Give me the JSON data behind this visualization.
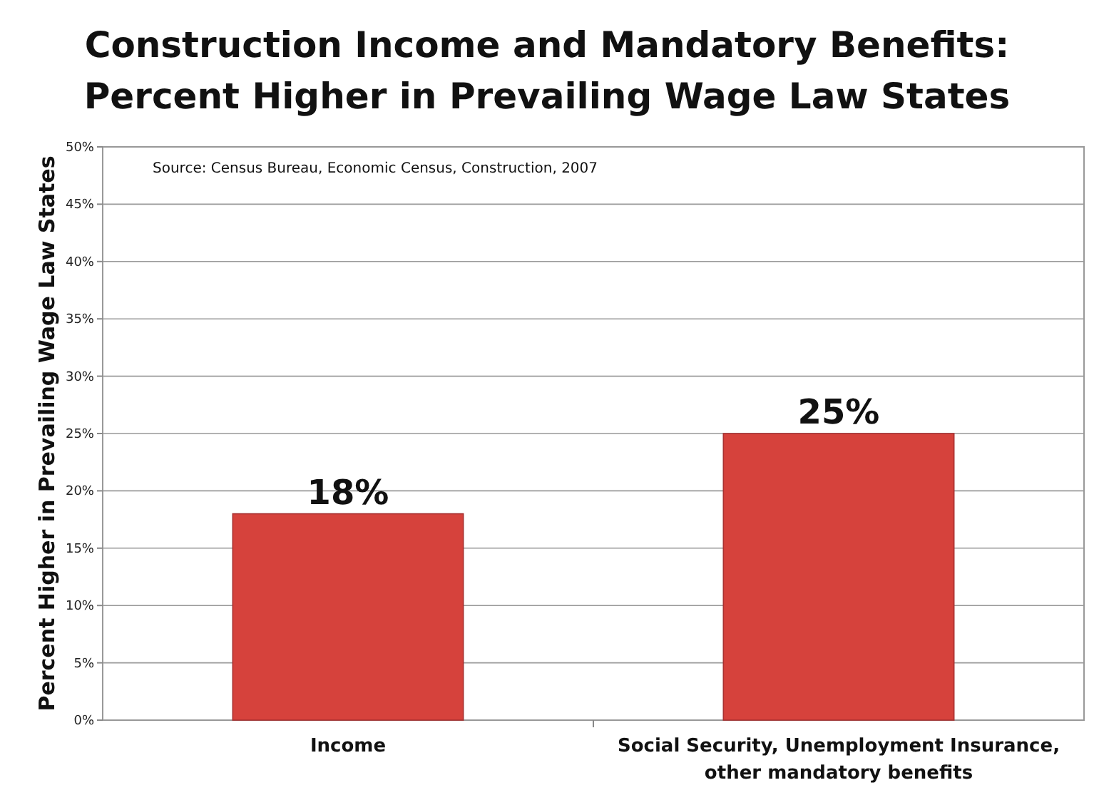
{
  "chart_data": {
    "type": "bar",
    "title": "Construction Income and Mandatory Benefits:\nPercent Higher in Prevailing Wage Law States",
    "ylabel": "Percent Higher in Prevailing Wage Law States",
    "categories": [
      "Income",
      "Social Security, Unemployment Insurance, other mandatory benefits"
    ],
    "values": [
      18,
      25
    ],
    "value_labels": [
      "18%",
      "25%"
    ],
    "color": "#d6423c",
    "ylim": [
      0,
      50
    ],
    "yticks": [
      {
        "value": 0,
        "label": "0%"
      },
      {
        "value": 5,
        "label": "5%"
      },
      {
        "value": 10,
        "label": "10%"
      },
      {
        "value": 15,
        "label": "15%"
      },
      {
        "value": 20,
        "label": "20%"
      },
      {
        "value": 25,
        "label": "25%"
      },
      {
        "value": 30,
        "label": "30%"
      },
      {
        "value": 35,
        "label": "35%"
      },
      {
        "value": 40,
        "label": "40%"
      },
      {
        "value": 45,
        "label": "45%"
      },
      {
        "value": 50,
        "label": "50%"
      }
    ],
    "grid": "y",
    "annotations": [
      "Source: Census Bureau, Economic Census, Construction, 2007"
    ]
  }
}
